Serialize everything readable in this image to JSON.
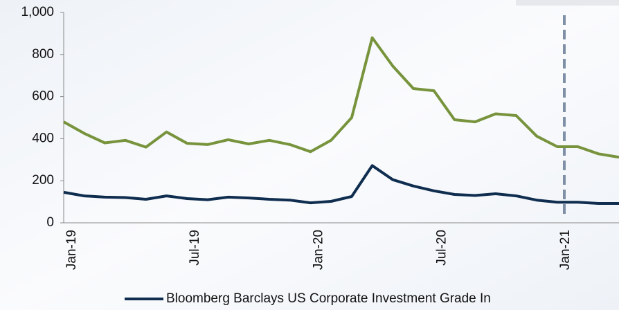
{
  "chart_data": {
    "type": "line",
    "categories": [
      "Jan-19",
      null,
      null,
      null,
      null,
      null,
      "Jul-19",
      null,
      null,
      null,
      null,
      null,
      "Jan-20",
      null,
      null,
      null,
      null,
      null,
      "Jul-20",
      null,
      null,
      null,
      null,
      null,
      "Jan-21",
      null,
      null,
      null
    ],
    "series": [
      {
        "name": "Bloomberg Barclays US Corporate Investment Grade In",
        "color": "#0f2d4f",
        "values": [
          145,
          128,
          122,
          120,
          112,
          128,
          115,
          110,
          122,
          118,
          112,
          108,
          95,
          102,
          125,
          272,
          205,
          175,
          152,
          135,
          130,
          138,
          128,
          108,
          98,
          98,
          92,
          92
        ]
      },
      {
        "color": "#77933c",
        "values": [
          480,
          425,
          380,
          392,
          360,
          432,
          378,
          372,
          395,
          375,
          392,
          372,
          338,
          392,
          500,
          880,
          745,
          638,
          628,
          490,
          480,
          518,
          510,
          412,
          362,
          362,
          328,
          312
        ]
      }
    ],
    "ylim": [
      0,
      1000
    ],
    "yticks": [
      0,
      200,
      400,
      600,
      800,
      {
        "value": 1000,
        "label": "1,000"
      }
    ]
  }
}
